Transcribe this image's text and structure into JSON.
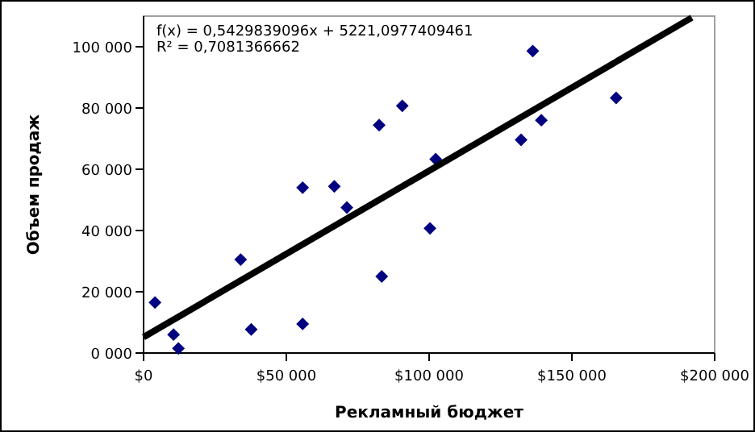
{
  "chart_data": {
    "type": "scatter",
    "xlabel": "Рекламный бюджет",
    "ylabel": "Объем продаж",
    "annotations": [
      "f(x) = 0,5429839096x + 5221,0977409461",
      "R² = 0,7081366662"
    ],
    "xlim": [
      0,
      200000
    ],
    "ylim": [
      0,
      110000
    ],
    "xticks": [
      {
        "value": 0,
        "label": "$0"
      },
      {
        "value": 50000,
        "label": "$50 000"
      },
      {
        "value": 100000,
        "label": "$100 000"
      },
      {
        "value": 150000,
        "label": "$150 000"
      },
      {
        "value": 200000,
        "label": "$200 000"
      }
    ],
    "yticks": [
      {
        "value": 0,
        "label": "0 000"
      },
      {
        "value": 20000,
        "label": "20 000"
      },
      {
        "value": 40000,
        "label": "40 000"
      },
      {
        "value": 60000,
        "label": "60 000"
      },
      {
        "value": 80000,
        "label": "80 000"
      },
      {
        "value": 100000,
        "label": "100 000"
      }
    ],
    "grid": false,
    "marker": "diamond",
    "series": [
      {
        "color": "#000080",
        "x": [
          4000,
          10500,
          12200,
          34000,
          37700,
          55700,
          55700,
          66800,
          71200,
          82500,
          83400,
          90600,
          100300,
          102300,
          132200,
          136300,
          139300,
          165500
        ],
        "values": [
          16500,
          6000,
          1500,
          30500,
          7700,
          54000,
          9500,
          54400,
          47500,
          74400,
          25000,
          80700,
          40700,
          63300,
          69600,
          98600,
          76000,
          83300
        ]
      },
      {
        "type": "line",
        "color": "#000000",
        "x": [
          0,
          192000
        ],
        "values": [
          5200,
          109500
        ],
        "marker": "none",
        "line_style": "solid"
      }
    ]
  }
}
